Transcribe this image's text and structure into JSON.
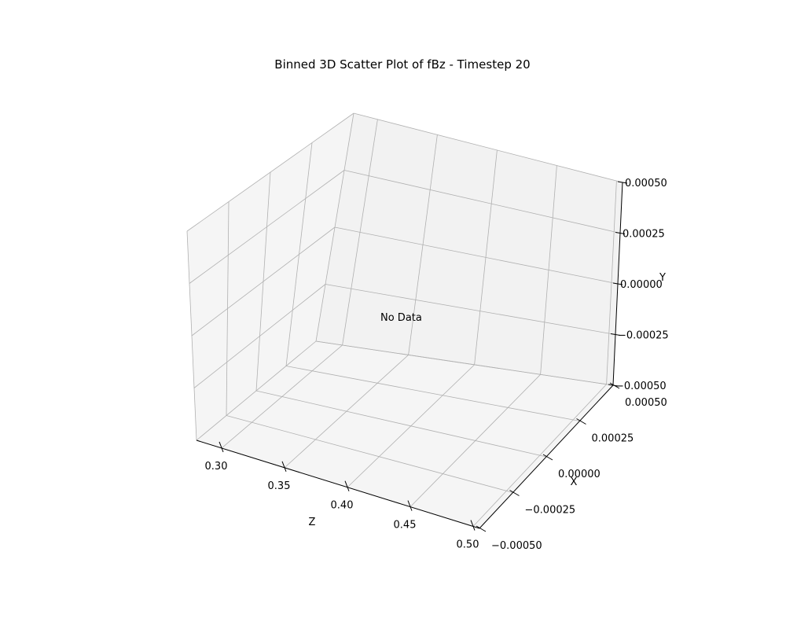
{
  "chart_data": {
    "type": "scatter",
    "title": "Binned 3D Scatter Plot of fBz - Timestep 20",
    "annotation": "No Data",
    "grid": true,
    "series": [],
    "axes": {
      "z": {
        "label": "Z",
        "range": [
          0.28,
          0.505
        ],
        "ticks": [
          0.3,
          0.35,
          0.4,
          0.45,
          0.5
        ],
        "tick_labels": [
          "0.30",
          "0.35",
          "0.40",
          "0.45",
          "0.50"
        ]
      },
      "x": {
        "label": "X",
        "range": [
          -0.0005,
          0.0005
        ],
        "ticks": [
          -0.0005,
          -0.00025,
          0.0,
          0.00025,
          0.0005
        ],
        "tick_labels": [
          "−0.00050",
          "−0.00025",
          "0.00000",
          "0.00025",
          "0.00050"
        ]
      },
      "y": {
        "label": "Y",
        "range": [
          -0.0005,
          0.0005
        ],
        "ticks": [
          -0.0005,
          -0.00025,
          0.0,
          0.00025,
          0.0005
        ],
        "tick_labels": [
          "−0.00050",
          "−0.00025",
          "0.00000",
          "0.00025",
          "0.00050"
        ]
      }
    }
  }
}
